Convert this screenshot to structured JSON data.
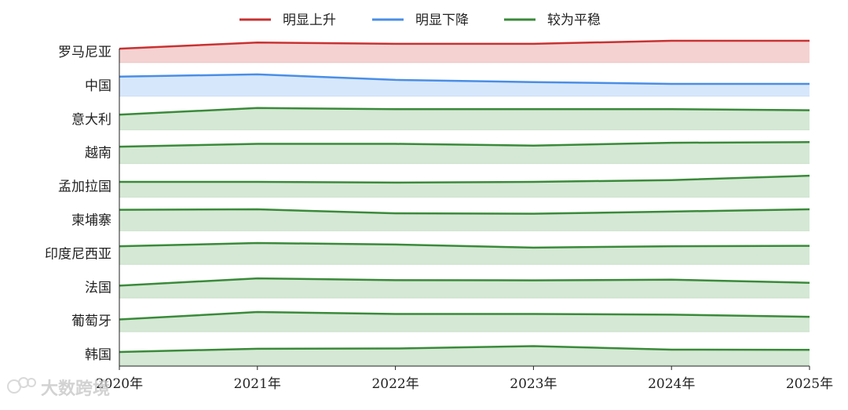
{
  "chart_data": {
    "type": "area",
    "x": [
      "2020年",
      "2021年",
      "2022年",
      "2023年",
      "2024年",
      "2025年"
    ],
    "ylim": [
      0,
      1
    ],
    "legend": {
      "placement": "top-center",
      "entries": [
        {
          "key": "up",
          "label": "明显上升",
          "color": "#c83232"
        },
        {
          "key": "down",
          "label": "明显下降",
          "color": "#4a8ee6"
        },
        {
          "key": "flat",
          "label": "较为平稳",
          "color": "#3a8a3a"
        }
      ]
    },
    "colors": {
      "up": {
        "line": "#c83232",
        "fill": "#f5d2d2"
      },
      "down": {
        "line": "#4a8ee6",
        "fill": "#d7e7fb"
      },
      "flat": {
        "line": "#3a8a3a",
        "fill": "#d5e8d5"
      }
    },
    "series": [
      {
        "name": "罗马尼亚",
        "trend": "up",
        "values": [
          0.64,
          0.92,
          0.86,
          0.86,
          1.0,
          1.0
        ]
      },
      {
        "name": "中国",
        "trend": "down",
        "values": [
          0.9,
          1.0,
          0.75,
          0.65,
          0.57,
          0.57
        ]
      },
      {
        "name": "意大利",
        "trend": "flat",
        "values": [
          0.7,
          1.0,
          0.95,
          0.95,
          0.95,
          0.9
        ]
      },
      {
        "name": "越南",
        "trend": "flat",
        "values": [
          0.77,
          0.9,
          0.9,
          0.82,
          0.95,
          0.98
        ]
      },
      {
        "name": "孟加拉国",
        "trend": "flat",
        "values": [
          0.7,
          0.7,
          0.67,
          0.7,
          0.78,
          0.98
        ]
      },
      {
        "name": "柬埔寨",
        "trend": "flat",
        "values": [
          0.96,
          0.98,
          0.8,
          0.78,
          0.88,
          0.98
        ]
      },
      {
        "name": "印度尼西亚",
        "trend": "flat",
        "values": [
          0.83,
          0.98,
          0.91,
          0.77,
          0.83,
          0.85
        ]
      },
      {
        "name": "法国",
        "trend": "flat",
        "values": [
          0.57,
          0.9,
          0.82,
          0.81,
          0.84,
          0.7
        ]
      },
      {
        "name": "葡萄牙",
        "trend": "flat",
        "values": [
          0.56,
          0.9,
          0.81,
          0.81,
          0.78,
          0.68
        ]
      },
      {
        "name": "韩国",
        "trend": "flat",
        "values": [
          0.61,
          0.76,
          0.77,
          0.88,
          0.72,
          0.71
        ]
      }
    ]
  },
  "watermark": {
    "text": "大数跨境",
    "logo_icon": "weibo-style-logo-icon"
  }
}
